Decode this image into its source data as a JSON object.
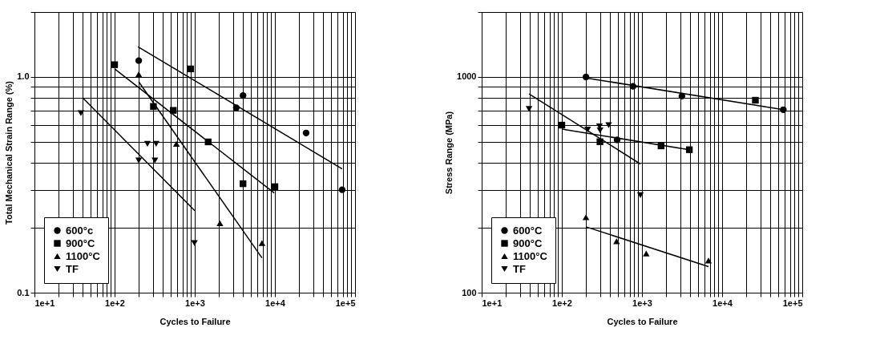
{
  "chart_data": [
    {
      "type": "scatter",
      "xlabel": "Cycles to Failure",
      "ylabel": "Total Mechanical Strain Range (%)",
      "log": "xy",
      "grid": true,
      "legend": "bottom left",
      "xlim": [
        10,
        100000
      ],
      "ylim": [
        0.1,
        2
      ],
      "xticks": [
        {
          "value": 10,
          "label": "1e+1"
        },
        {
          "value": 20,
          "label": null
        },
        {
          "value": 30,
          "label": null
        },
        {
          "value": 40,
          "label": null
        },
        {
          "value": 50,
          "label": null
        },
        {
          "value": 60,
          "label": null
        },
        {
          "value": 70,
          "label": null
        },
        {
          "value": 80,
          "label": null
        },
        {
          "value": 90,
          "label": null
        },
        {
          "value": 100,
          "label": "1e+2"
        },
        {
          "value": 200,
          "label": null
        },
        {
          "value": 300,
          "label": null
        },
        {
          "value": 400,
          "label": null
        },
        {
          "value": 500,
          "label": null
        },
        {
          "value": 600,
          "label": null
        },
        {
          "value": 700,
          "label": null
        },
        {
          "value": 800,
          "label": null
        },
        {
          "value": 900,
          "label": null
        },
        {
          "value": 1000,
          "label": "1e+3"
        },
        {
          "value": 2000,
          "label": null
        },
        {
          "value": 3000,
          "label": null
        },
        {
          "value": 4000,
          "label": null
        },
        {
          "value": 5000,
          "label": null
        },
        {
          "value": 6000,
          "label": null
        },
        {
          "value": 7000,
          "label": null
        },
        {
          "value": 8000,
          "label": null
        },
        {
          "value": 9000,
          "label": null
        },
        {
          "value": 10000,
          "label": "1e+4"
        },
        {
          "value": 20000,
          "label": null
        },
        {
          "value": 30000,
          "label": null
        },
        {
          "value": 40000,
          "label": null
        },
        {
          "value": 50000,
          "label": null
        },
        {
          "value": 60000,
          "label": null
        },
        {
          "value": 70000,
          "label": null
        },
        {
          "value": 80000,
          "label": null
        },
        {
          "value": 90000,
          "label": null
        },
        {
          "value": 100000,
          "label": "1e+5"
        }
      ],
      "yticks": [
        0.1,
        {
          "value": 0.2,
          "label": null
        },
        {
          "value": 0.3,
          "label": null
        },
        {
          "value": 0.4,
          "label": null
        },
        {
          "value": 0.5,
          "label": null
        },
        {
          "value": 0.6,
          "label": null
        },
        {
          "value": 0.7,
          "label": null
        },
        {
          "value": 0.8,
          "label": null
        },
        {
          "value": 0.9,
          "label": null
        },
        {
          "value": 1,
          "label": "1.0"
        },
        {
          "value": 2,
          "label": null
        }
      ],
      "series": [
        {
          "name": "600°c",
          "color": "#000000",
          "marker": "circle",
          "x": [
            200,
            3300,
            4000,
            24500,
            69000
          ],
          "values": [
            1.19,
            0.72,
            0.82,
            0.55,
            0.3
          ]
        },
        {
          "name": "900°C",
          "color": "#000000",
          "marker": "square",
          "x": [
            100,
            305,
            540,
            890,
            1470,
            4000,
            10000
          ],
          "values": [
            1.14,
            0.73,
            0.7,
            1.09,
            0.5,
            0.32,
            0.31
          ]
        },
        {
          "name": "1100°C",
          "color": "#000000",
          "marker": "triangle",
          "x": [
            200,
            590,
            2060,
            6900
          ],
          "values": [
            1.03,
            0.49,
            0.21,
            0.17
          ]
        },
        {
          "name": "TF",
          "color": "#000000",
          "marker": "triangle-down",
          "x": [
            38,
            200,
            257,
            318,
            330,
            990
          ],
          "values": [
            0.68,
            0.41,
            0.49,
            0.41,
            0.49,
            0.17
          ]
        },
        {
          "type": "line",
          "color": "#000000",
          "marker": "none",
          "x": [
            196,
            69000
          ],
          "values": [
            1.38,
            0.375
          ]
        },
        {
          "type": "line",
          "color": "#000000",
          "marker": "none",
          "x": [
            100,
            9800
          ],
          "values": [
            1.09,
            0.29
          ]
        },
        {
          "type": "line",
          "color": "#000000",
          "marker": "none",
          "x": [
            200,
            6900
          ],
          "values": [
            0.95,
            0.145
          ]
        },
        {
          "type": "line",
          "color": "#000000",
          "marker": "none",
          "x": [
            40,
            1000
          ],
          "values": [
            0.8,
            0.24
          ]
        }
      ]
    },
    {
      "type": "scatter",
      "xlabel": "Cycles to Failure",
      "ylabel": "Stress Range (MPa)",
      "log": "xy",
      "grid": true,
      "legend": "bottom left",
      "xlim": [
        10,
        100000
      ],
      "ylim": [
        100,
        2000
      ],
      "xticks": [
        {
          "value": 10,
          "label": "1e+1"
        },
        {
          "value": 20,
          "label": null
        },
        {
          "value": 30,
          "label": null
        },
        {
          "value": 40,
          "label": null
        },
        {
          "value": 50,
          "label": null
        },
        {
          "value": 60,
          "label": null
        },
        {
          "value": 70,
          "label": null
        },
        {
          "value": 80,
          "label": null
        },
        {
          "value": 90,
          "label": null
        },
        {
          "value": 100,
          "label": "1e+2"
        },
        {
          "value": 200,
          "label": null
        },
        {
          "value": 300,
          "label": null
        },
        {
          "value": 400,
          "label": null
        },
        {
          "value": 500,
          "label": null
        },
        {
          "value": 600,
          "label": null
        },
        {
          "value": 700,
          "label": null
        },
        {
          "value": 800,
          "label": null
        },
        {
          "value": 900,
          "label": null
        },
        {
          "value": 1000,
          "label": "1e+3"
        },
        {
          "value": 2000,
          "label": null
        },
        {
          "value": 3000,
          "label": null
        },
        {
          "value": 4000,
          "label": null
        },
        {
          "value": 5000,
          "label": null
        },
        {
          "value": 6000,
          "label": null
        },
        {
          "value": 7000,
          "label": null
        },
        {
          "value": 8000,
          "label": null
        },
        {
          "value": 9000,
          "label": null
        },
        {
          "value": 10000,
          "label": "1e+4"
        },
        {
          "value": 20000,
          "label": null
        },
        {
          "value": 30000,
          "label": null
        },
        {
          "value": 40000,
          "label": null
        },
        {
          "value": 50000,
          "label": null
        },
        {
          "value": 60000,
          "label": null
        },
        {
          "value": 70000,
          "label": null
        },
        {
          "value": 80000,
          "label": null
        },
        {
          "value": 90000,
          "label": null
        },
        {
          "value": 100000,
          "label": "1e+5"
        }
      ],
      "yticks": [
        100,
        {
          "value": 200,
          "label": null
        },
        {
          "value": 300,
          "label": null
        },
        {
          "value": 400,
          "label": null
        },
        {
          "value": 500,
          "label": null
        },
        {
          "value": 600,
          "label": null
        },
        {
          "value": 700,
          "label": null
        },
        {
          "value": 800,
          "label": null
        },
        {
          "value": 900,
          "label": null
        },
        1000,
        {
          "value": 2000,
          "label": null
        }
      ],
      "series": [
        {
          "name": "600°C",
          "color": "#000000",
          "marker": "circle",
          "x": [
            200,
            490,
            773,
            3150,
            58000
          ],
          "values": [
            1000,
            511,
            905,
            815,
            705
          ]
        },
        {
          "name": "900°C",
          "color": "#000000",
          "marker": "square",
          "x": [
            100,
            299,
            1730,
            3900,
            26000
          ],
          "values": [
            598,
            501,
            479,
            460,
            780
          ]
        },
        {
          "name": "1100°C",
          "color": "#000000",
          "marker": "triangle",
          "x": [
            200,
            482,
            1130,
            6760
          ],
          "values": [
            224,
            173,
            152,
            141
          ]
        },
        {
          "name": "TF",
          "color": "#000000",
          "marker": "triangle-down",
          "x": [
            39,
            210,
            295,
            300,
            384,
            955
          ],
          "values": [
            710,
            570,
            590,
            565,
            598,
            283
          ]
        },
        {
          "type": "line",
          "color": "#000000",
          "marker": "none",
          "x": [
            200,
            58000
          ],
          "values": [
            990,
            705
          ]
        },
        {
          "type": "line",
          "color": "#000000",
          "marker": "none",
          "x": [
            100,
            3900
          ],
          "values": [
            573,
            460
          ]
        },
        {
          "type": "line",
          "color": "#000000",
          "marker": "none",
          "x": [
            39,
            955
          ],
          "values": [
            835,
            395
          ]
        },
        {
          "type": "line",
          "color": "#000000",
          "marker": "none",
          "x": [
            200,
            6760
          ],
          "values": [
            202,
            132
          ]
        }
      ]
    }
  ]
}
